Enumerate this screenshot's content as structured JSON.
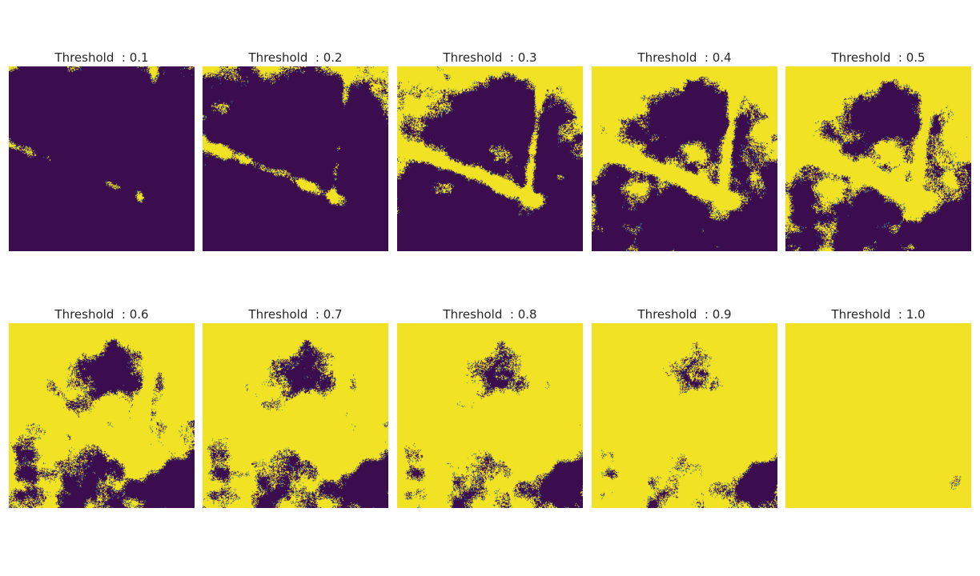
{
  "colors": {
    "low": "#3b0d4f",
    "high": "#f2e224",
    "mid": "#3c7b8d"
  },
  "chart_data": [
    {
      "type": "heatmap",
      "title": "Threshold  : 0.1",
      "threshold": 0.1,
      "fraction_high": 0.01,
      "colormap": "viridis (binary)",
      "axes": "off"
    },
    {
      "type": "heatmap",
      "title": "Threshold  : 0.2",
      "threshold": 0.2,
      "fraction_high": 0.08,
      "colormap": "viridis (binary)",
      "axes": "off"
    },
    {
      "type": "heatmap",
      "title": "Threshold  : 0.3",
      "threshold": 0.3,
      "fraction_high": 0.27,
      "colormap": "viridis (binary)",
      "axes": "off"
    },
    {
      "type": "heatmap",
      "title": "Threshold  : 0.4",
      "threshold": 0.4,
      "fraction_high": 0.42,
      "colormap": "viridis (binary)",
      "axes": "off"
    },
    {
      "type": "heatmap",
      "title": "Threshold  : 0.5",
      "threshold": 0.5,
      "fraction_high": 0.55,
      "colormap": "viridis (binary)",
      "axes": "off"
    },
    {
      "type": "heatmap",
      "title": "Threshold  : 0.6",
      "threshold": 0.6,
      "fraction_high": 0.7,
      "colormap": "viridis (binary)",
      "axes": "off"
    },
    {
      "type": "heatmap",
      "title": "Threshold  : 0.7",
      "threshold": 0.7,
      "fraction_high": 0.79,
      "colormap": "viridis (binary)",
      "axes": "off"
    },
    {
      "type": "heatmap",
      "title": "Threshold  : 0.8",
      "threshold": 0.8,
      "fraction_high": 0.86,
      "colormap": "viridis (binary)",
      "axes": "off"
    },
    {
      "type": "heatmap",
      "title": "Threshold  : 0.9",
      "threshold": 0.9,
      "fraction_high": 0.91,
      "colormap": "viridis (binary)",
      "axes": "off"
    },
    {
      "type": "heatmap",
      "title": "Threshold  : 1.0",
      "threshold": 1.0,
      "fraction_high": 0.999,
      "colormap": "viridis (binary)",
      "axes": "off"
    }
  ]
}
